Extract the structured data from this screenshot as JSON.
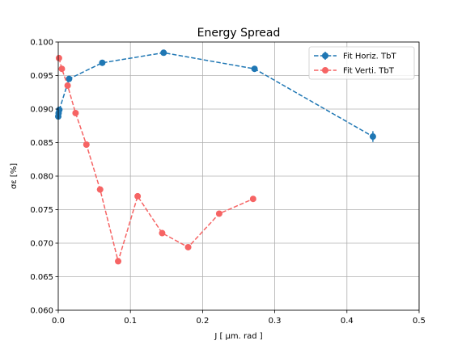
{
  "chart_data": {
    "type": "scatter",
    "title": "Energy Spread",
    "xlabel": "J [ μm. rad ]",
    "ylabel": "σε [%]",
    "xlim": [
      0.0,
      0.5
    ],
    "ylim": [
      0.06,
      0.1
    ],
    "xticks": [
      "0.0",
      "0.1",
      "0.2",
      "0.3",
      "0.4",
      "0.5"
    ],
    "xtick_values": [
      0.0,
      0.1,
      0.2,
      0.3,
      0.4,
      0.5
    ],
    "yticks": [
      "0.060",
      "0.065",
      "0.070",
      "0.075",
      "0.080",
      "0.085",
      "0.090",
      "0.095",
      "0.100"
    ],
    "ytick_values": [
      0.06,
      0.065,
      0.07,
      0.075,
      0.08,
      0.085,
      0.09,
      0.095,
      0.1
    ],
    "grid": true,
    "legend_position": "top-right",
    "series": [
      {
        "name": "Fit Horiz. TbT",
        "color": "#1f77b4",
        "line": "dashed",
        "marker": "circle",
        "x": [
          0.0,
          0.0005,
          0.0015,
          0.015,
          0.061,
          0.146,
          0.272,
          0.436
        ],
        "y": [
          0.0889,
          0.0894,
          0.0899,
          0.0945,
          0.0969,
          0.0984,
          0.096,
          0.0859
        ],
        "yerr": [
          0.0002,
          0.0002,
          0.0002,
          0.0002,
          0.0003,
          0.0003,
          0.0003,
          0.0008
        ]
      },
      {
        "name": "Fit Verti. TbT",
        "color": "#f66464",
        "line": "dashed",
        "marker": "circle",
        "x": [
          0.001,
          0.005,
          0.013,
          0.024,
          0.039,
          0.058,
          0.083,
          0.11,
          0.144,
          0.18,
          0.223,
          0.27
        ],
        "y": [
          0.0976,
          0.096,
          0.0935,
          0.0894,
          0.0847,
          0.078,
          0.0673,
          0.077,
          0.0715,
          0.0694,
          0.0744,
          0.0766
        ]
      }
    ]
  }
}
